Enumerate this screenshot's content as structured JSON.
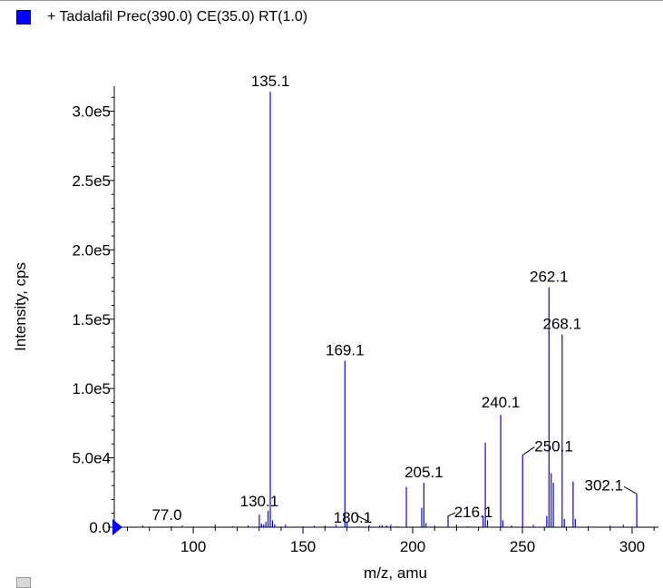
{
  "legend": {
    "text": "+ Tadalafil Prec(390.0) CE(35.0) RT(1.0)",
    "color": "#0000ff"
  },
  "chart_data": {
    "type": "bar",
    "title": "",
    "xlabel": "m/z, amu",
    "ylabel": "Intensity, cps",
    "xlim": [
      64,
      312
    ],
    "ylim": [
      0,
      318000
    ],
    "x_ticks": [
      100,
      150,
      200,
      250,
      300
    ],
    "x_tick_labels": [
      "100",
      "150",
      "200",
      "250",
      "300"
    ],
    "y_ticks": [
      0,
      50000,
      100000,
      150000,
      200000,
      250000,
      300000
    ],
    "y_tick_labels": [
      "0.0",
      "5.0e4",
      "1.0e5",
      "1.5e5",
      "2.0e5",
      "2.5e5",
      "3.0e5"
    ],
    "series_color": "#0000ff",
    "grid": false,
    "peaks": [
      {
        "mz": 77.0,
        "intensity": 1200,
        "label": "77.0"
      },
      {
        "mz": 130.1,
        "intensity": 9000,
        "label": "130.1"
      },
      {
        "mz": 131.1,
        "intensity": 2500
      },
      {
        "mz": 132.1,
        "intensity": 2000
      },
      {
        "mz": 133.1,
        "intensity": 4000
      },
      {
        "mz": 134.1,
        "intensity": 12000
      },
      {
        "mz": 135.1,
        "intensity": 314000,
        "label": "135.1"
      },
      {
        "mz": 136.1,
        "intensity": 5000
      },
      {
        "mz": 137.1,
        "intensity": 2000
      },
      {
        "mz": 155.1,
        "intensity": 1000
      },
      {
        "mz": 169.1,
        "intensity": 120000,
        "label": "169.1"
      },
      {
        "mz": 170.1,
        "intensity": 4000
      },
      {
        "mz": 180.1,
        "intensity": 1500,
        "label": "180.1"
      },
      {
        "mz": 186.1,
        "intensity": 1500
      },
      {
        "mz": 188.1,
        "intensity": 1200
      },
      {
        "mz": 197.1,
        "intensity": 29000
      },
      {
        "mz": 204.1,
        "intensity": 14000
      },
      {
        "mz": 205.1,
        "intensity": 32000,
        "label": "205.1"
      },
      {
        "mz": 206.1,
        "intensity": 3000
      },
      {
        "mz": 216.1,
        "intensity": 8000,
        "label": "216.1"
      },
      {
        "mz": 232.1,
        "intensity": 8000
      },
      {
        "mz": 233.1,
        "intensity": 61000
      },
      {
        "mz": 234.1,
        "intensity": 5000
      },
      {
        "mz": 240.1,
        "intensity": 81000,
        "label": "240.1"
      },
      {
        "mz": 241.1,
        "intensity": 5000
      },
      {
        "mz": 250.1,
        "intensity": 52000,
        "label": "250.1"
      },
      {
        "mz": 261.1,
        "intensity": 8000
      },
      {
        "mz": 262.1,
        "intensity": 173000,
        "label": "262.1"
      },
      {
        "mz": 263.1,
        "intensity": 39000
      },
      {
        "mz": 264.1,
        "intensity": 32000
      },
      {
        "mz": 268.1,
        "intensity": 139000,
        "label": "268.1"
      },
      {
        "mz": 269.1,
        "intensity": 6000
      },
      {
        "mz": 273.1,
        "intensity": 33000
      },
      {
        "mz": 274.1,
        "intensity": 6000
      },
      {
        "mz": 302.1,
        "intensity": 24000,
        "label": "302.1"
      }
    ]
  }
}
